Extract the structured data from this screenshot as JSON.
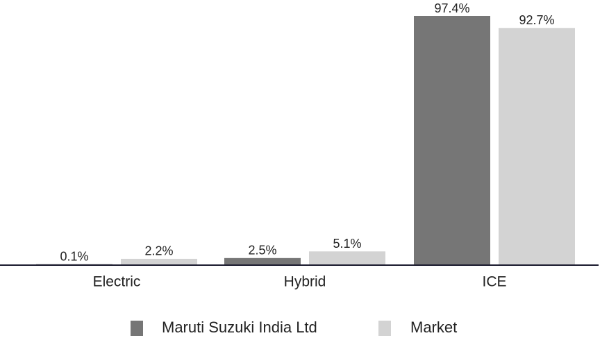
{
  "chart_data": {
    "type": "bar",
    "categories": [
      "Electric",
      "Hybrid",
      "ICE"
    ],
    "series": [
      {
        "name": "Maruti Suzuki India Ltd",
        "color": "#767676",
        "values": [
          0.1,
          2.5,
          97.4
        ],
        "value_labels": [
          "0.1%",
          "2.5%",
          "97.4%"
        ]
      },
      {
        "name": "Market",
        "color": "#d3d3d3",
        "values": [
          2.2,
          5.1,
          92.7
        ],
        "value_labels": [
          "2.2%",
          "5.1%",
          "92.7%"
        ]
      }
    ],
    "legend": "bottom"
  }
}
